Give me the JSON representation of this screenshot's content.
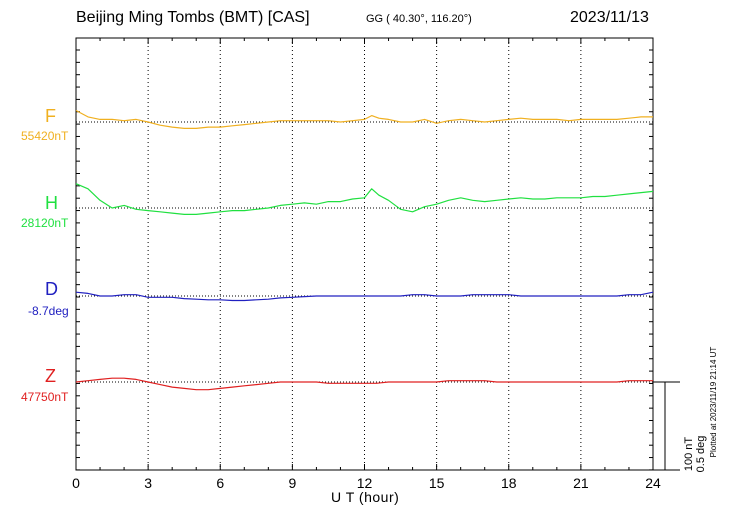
{
  "header": {
    "title": "Beijing Ming Tombs (BMT)  [CAS]",
    "coords": "GG ( 40.30°, 116.20°)",
    "date": "2023/11/13"
  },
  "footnote": "Plotted at 2023/11/19 21:14 UT",
  "scale": {
    "line1": "100 nT",
    "line2": "0.5 deg"
  },
  "chart_data": {
    "type": "line",
    "title": "Beijing Ming Tombs (BMT)  [CAS]",
    "xlabel": "U T (hour)",
    "xlim": [
      0,
      24
    ],
    "xticks": [
      "0",
      "3",
      "6",
      "9",
      "12",
      "15",
      "18",
      "21",
      "24"
    ],
    "grid": true,
    "scale_bar": "100 nT / 0.5 deg",
    "components": [
      {
        "name": "F",
        "baseline": "55420nT",
        "color": "#f0b020",
        "x": [
          0,
          0.5,
          1,
          1.5,
          2,
          2.5,
          3,
          3.5,
          4,
          4.5,
          5,
          5.5,
          6,
          6.5,
          7,
          7.5,
          8,
          8.5,
          9,
          9.5,
          10,
          10.5,
          11,
          11.5,
          12,
          12.3,
          12.6,
          13,
          13.5,
          14,
          14.5,
          15,
          15.5,
          16,
          16.5,
          17,
          17.5,
          18,
          18.5,
          19,
          19.5,
          20,
          20.5,
          21,
          21.5,
          22,
          22.5,
          23,
          23.5,
          24
        ],
        "y": [
          18,
          8,
          4,
          4,
          2,
          4,
          0,
          -5,
          -8,
          -10,
          -10,
          -8,
          -8,
          -6,
          -4,
          -2,
          0,
          2,
          2,
          2,
          2,
          2,
          0,
          2,
          4,
          10,
          6,
          4,
          0,
          0,
          4,
          -2,
          2,
          4,
          2,
          0,
          2,
          4,
          6,
          4,
          4,
          4,
          2,
          4,
          4,
          4,
          4,
          6,
          8,
          8
        ]
      },
      {
        "name": "H",
        "baseline": "28120nT",
        "color": "#20e040",
        "x": [
          0,
          0.5,
          1,
          1.5,
          2,
          2.5,
          3,
          3.5,
          4,
          4.5,
          5,
          5.5,
          6,
          6.5,
          7,
          7.5,
          8,
          8.5,
          9,
          9.5,
          10,
          10.5,
          11,
          11.5,
          12,
          12.3,
          12.6,
          13,
          13.5,
          14,
          14.5,
          15,
          15.5,
          16,
          16.5,
          17,
          17.5,
          18,
          18.5,
          19,
          19.5,
          20,
          20.5,
          21,
          21.5,
          22,
          22.5,
          23,
          23.5,
          24
        ],
        "y": [
          38,
          30,
          12,
          0,
          4,
          -2,
          -4,
          -6,
          -8,
          -10,
          -10,
          -8,
          -6,
          -4,
          -4,
          -2,
          0,
          4,
          6,
          8,
          6,
          10,
          10,
          14,
          16,
          30,
          20,
          12,
          -2,
          -6,
          2,
          6,
          12,
          16,
          12,
          10,
          12,
          14,
          16,
          14,
          14,
          16,
          16,
          16,
          18,
          18,
          20,
          22,
          24,
          26
        ]
      },
      {
        "name": "D",
        "baseline": "-8.7deg",
        "color": "#2020c0",
        "x": [
          0,
          0.5,
          1,
          1.5,
          2,
          2.5,
          3,
          3.5,
          4,
          4.5,
          5,
          5.5,
          6,
          6.5,
          7,
          7.5,
          8,
          8.5,
          9,
          9.5,
          10,
          10.5,
          11,
          11.5,
          12,
          12.5,
          13,
          13.5,
          14,
          14.5,
          15,
          15.5,
          16,
          16.5,
          17,
          17.5,
          18,
          18.5,
          19,
          19.5,
          20,
          20.5,
          21,
          21.5,
          22,
          22.5,
          23,
          23.5,
          24
        ],
        "y": [
          6,
          4,
          0,
          0,
          2,
          2,
          -2,
          -2,
          -2,
          -4,
          -5,
          -6,
          -6,
          -7,
          -7,
          -6,
          -5,
          -3,
          -2,
          -1,
          0,
          0,
          0,
          0,
          0,
          0,
          0,
          0,
          2,
          2,
          0,
          0,
          0,
          2,
          2,
          2,
          2,
          0,
          0,
          0,
          0,
          0,
          0,
          0,
          0,
          0,
          2,
          2,
          6
        ]
      },
      {
        "name": "Z",
        "baseline": "47750nT",
        "color": "#e02020",
        "x": [
          0,
          0.5,
          1,
          1.5,
          2,
          2.5,
          3,
          3.5,
          4,
          4.5,
          5,
          5.5,
          6,
          6.5,
          7,
          7.5,
          8,
          8.5,
          9,
          9.5,
          10,
          10.5,
          11,
          11.5,
          12,
          12.5,
          13,
          13.5,
          14,
          14.5,
          15,
          15.5,
          16,
          16.5,
          17,
          17.5,
          18,
          18.5,
          19,
          19.5,
          20,
          20.5,
          21,
          21.5,
          22,
          22.5,
          23,
          23.5,
          24
        ],
        "y": [
          0,
          2,
          4,
          6,
          6,
          4,
          0,
          -4,
          -8,
          -10,
          -12,
          -12,
          -10,
          -8,
          -6,
          -4,
          -2,
          0,
          0,
          0,
          0,
          -2,
          -2,
          -2,
          -2,
          -2,
          0,
          0,
          0,
          0,
          0,
          2,
          2,
          2,
          2,
          0,
          0,
          0,
          0,
          0,
          0,
          0,
          0,
          0,
          0,
          0,
          2,
          2,
          2
        ]
      }
    ]
  }
}
